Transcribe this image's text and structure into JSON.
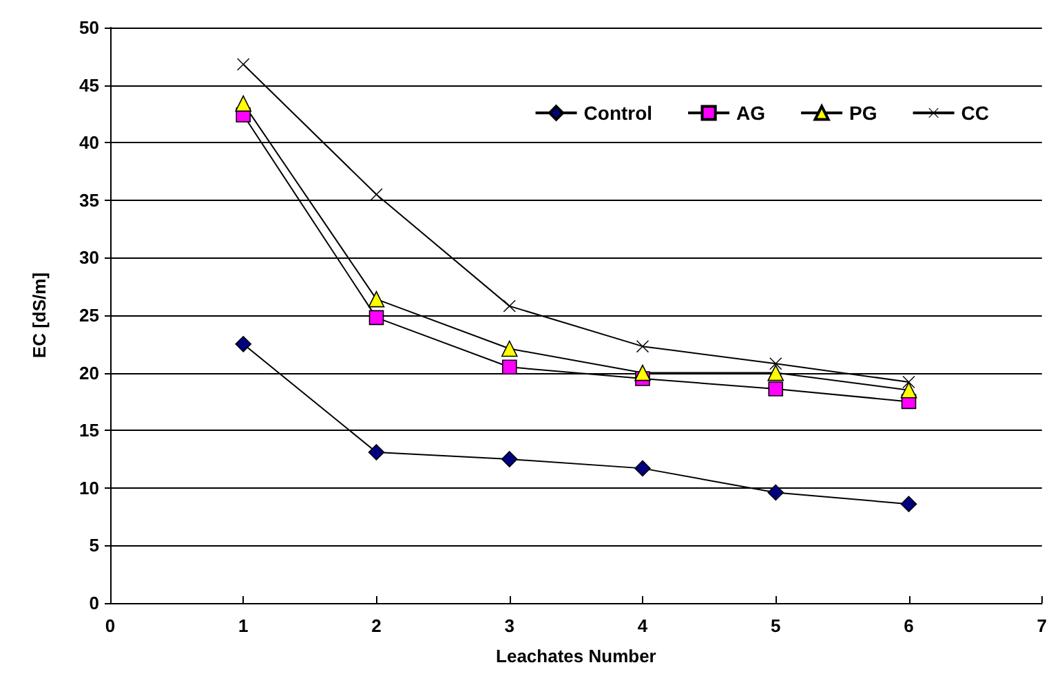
{
  "chart_data": {
    "type": "line",
    "xlabel": "Leachates Number",
    "ylabel": "EC [dS/m]",
    "x": [
      1,
      2,
      3,
      4,
      5,
      6
    ],
    "series": [
      {
        "name": "Control",
        "color": "#000080",
        "marker": "diamond",
        "values": [
          22.5,
          13.1,
          12.5,
          11.7,
          9.6,
          8.6
        ]
      },
      {
        "name": "AG",
        "color": "#ff00ff",
        "marker": "square",
        "values": [
          42.4,
          24.8,
          20.5,
          19.5,
          18.6,
          17.5
        ]
      },
      {
        "name": "PG",
        "color": "#ffff00",
        "marker": "triangle",
        "values": [
          43.4,
          26.4,
          22.1,
          20.0,
          20.0,
          18.5
        ]
      },
      {
        "name": "CC",
        "color": "#000000",
        "marker": "cross",
        "values": [
          46.8,
          35.5,
          25.8,
          22.3,
          20.8,
          19.2
        ]
      }
    ],
    "xlim": [
      0,
      7
    ],
    "xticks": [
      0,
      1,
      2,
      3,
      4,
      5,
      6,
      7
    ],
    "ylim": [
      0,
      50
    ],
    "yticks": [
      0,
      5,
      10,
      15,
      20,
      25,
      30,
      35,
      40,
      45,
      50
    ],
    "grid": "y",
    "legend": "top right"
  }
}
